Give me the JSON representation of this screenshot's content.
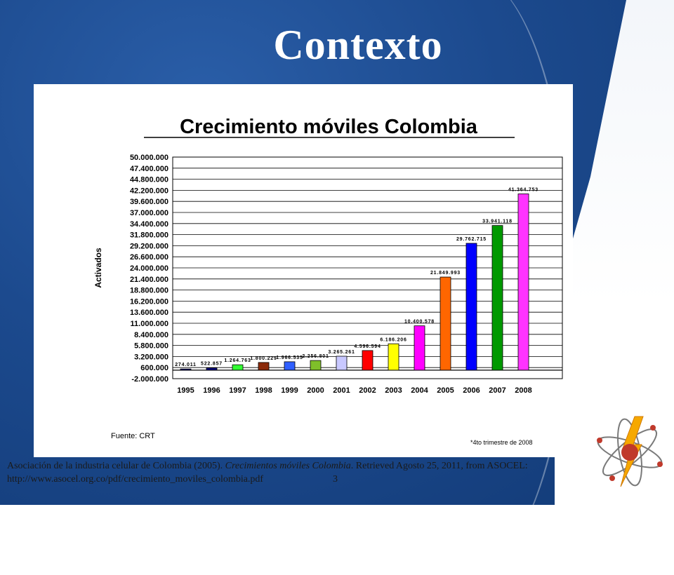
{
  "slide": {
    "title": "Contexto",
    "page_number": "3",
    "citation": {
      "part1": "Asociación de la industria celular de Colombia (2005). ",
      "italic": "Crecimientos móviles Colombia",
      "part2": ". Retrieved Agosto 25, 2011, from ASOCEL: http://www.asocel.org.co/pdf/crecimiento_moviles_colombia.pdf"
    }
  },
  "chart_data": {
    "type": "bar",
    "title": "Crecimiento móviles Colombia",
    "ylabel": "Activados",
    "source": "Fuente: CRT",
    "footnote": "*4to  trimestre de 2008",
    "categories": [
      "1995",
      "1996",
      "1997",
      "1998",
      "1999",
      "2000",
      "2001",
      "2002",
      "2003",
      "2004",
      "2005",
      "2006",
      "2007",
      "2008"
    ],
    "values": [
      274011,
      522857,
      1264763,
      1800229,
      1966535,
      2256801,
      3265261,
      4596594,
      6186206,
      10400578,
      21849993,
      29762715,
      33941118,
      41364753
    ],
    "value_labels": [
      "274.011",
      "522.857",
      "1.264.763",
      "1.800.229",
      "1.966.535",
      "2.256.801",
      "3.265.261",
      "4.596.594",
      "6.186.206",
      "10.400.578",
      "21.849.993",
      "29.762.715",
      "33.941.118",
      "41.364.753"
    ],
    "colors": [
      "#000080",
      "#000080",
      "#33ff33",
      "#8b2a0a",
      "#2f5fff",
      "#7fbf2a",
      "#c8c8ff",
      "#ff0000",
      "#ffff00",
      "#ff00ff",
      "#ff6600",
      "#0000ff",
      "#009900",
      "#ff33ff"
    ],
    "ylim": [
      -2000000,
      50000000
    ],
    "yticks": [
      -2000000,
      600000,
      3200000,
      5800000,
      8400000,
      11000000,
      13600000,
      16200000,
      18800000,
      21400000,
      24000000,
      26600000,
      29200000,
      31800000,
      34400000,
      37000000,
      39600000,
      42200000,
      44800000,
      47400000,
      50000000
    ],
    "ytick_labels": [
      "-2.000.000",
      "600.000",
      "3.200.000",
      "5.800.000",
      "8.400.000",
      "11.000.000",
      "13.600.000",
      "16.200.000",
      "18.800.000",
      "21.400.000",
      "24.000.000",
      "26.600.000",
      "29.200.000",
      "31.800.000",
      "34.400.000",
      "37.000.000",
      "39.600.000",
      "42.200.000",
      "44.800.000",
      "47.400.000",
      "50.000.000"
    ],
    "grid": true
  }
}
